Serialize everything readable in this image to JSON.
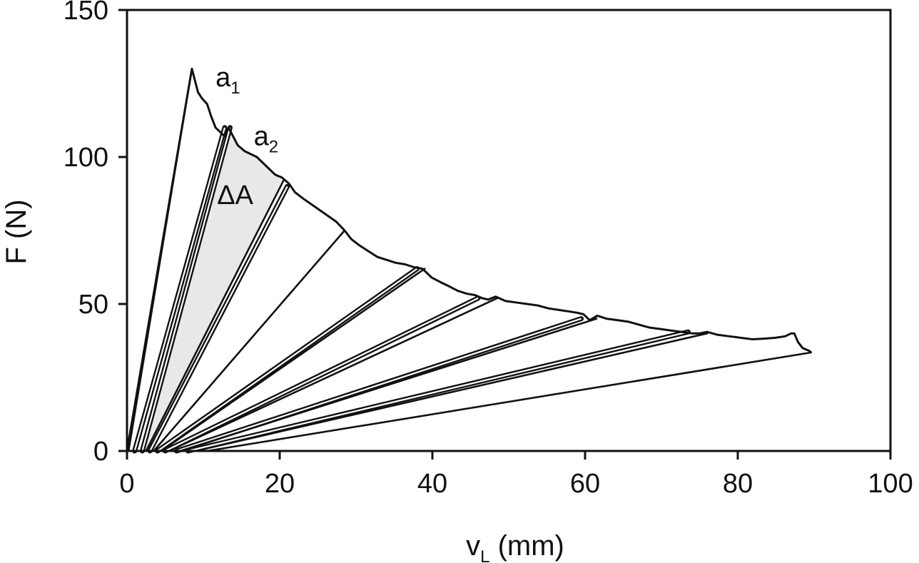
{
  "chart_data": {
    "type": "line",
    "xlabel": "v",
    "xlabel_sub": "L",
    "xlabel_unit": " (mm)",
    "ylabel": "F (N)",
    "xlim": [
      0,
      100
    ],
    "ylim": [
      0,
      150
    ],
    "xticks": [
      0,
      20,
      40,
      60,
      80,
      100
    ],
    "yticks": [
      0,
      50,
      100,
      150
    ],
    "grid": false,
    "envelope": {
      "x": [
        0,
        8.5,
        9.0,
        9.3,
        9.8,
        10.5,
        11.0,
        11.6,
        12.0,
        12.4,
        12.8,
        13.3,
        13.7,
        14.5,
        15.4,
        16.2,
        17.0,
        17.8,
        18.6,
        19.4,
        20.3,
        21.2,
        22.0,
        23.0,
        24.1,
        25.2,
        26.3,
        27.4,
        28.5,
        29.4,
        30.4,
        31.6,
        32.8,
        34.0,
        35.2,
        36.4,
        37.6,
        38.7,
        39.9,
        41.0,
        42.2,
        43.3,
        44.5,
        45.6,
        46.5,
        47.3,
        48.3,
        49.6,
        51.0,
        52.4,
        53.8,
        55.2,
        56.5,
        57.8,
        59.0,
        59.8,
        60.6,
        61.6,
        62.8,
        64.2,
        65.6,
        67.0,
        68.4,
        69.8,
        71.2,
        72.6,
        74.0,
        75.0,
        76.0,
        77.4,
        78.9,
        80.4,
        81.9,
        83.4,
        84.9,
        86.2,
        87.0,
        87.4,
        87.9,
        88.5,
        89.4,
        89.6
      ],
      "y": [
        0,
        130,
        125,
        122,
        120,
        118,
        114,
        110,
        109,
        108,
        107,
        110,
        108,
        104,
        102,
        101,
        100,
        98,
        96,
        94,
        93,
        91,
        88,
        86,
        84,
        82,
        80,
        78,
        75,
        72,
        70,
        68,
        66,
        65,
        64,
        63.5,
        62.5,
        62,
        59,
        57.5,
        56,
        54.5,
        53.5,
        53,
        52,
        51.5,
        52.5,
        51,
        50.5,
        50,
        49.5,
        48.5,
        48,
        47.5,
        47,
        46.5,
        44.5,
        46,
        45,
        44.5,
        44,
        43,
        42,
        41.5,
        41,
        40.5,
        40,
        40,
        40.5,
        39.5,
        39,
        38.5,
        38,
        38.2,
        38.5,
        39,
        40,
        40,
        37,
        35,
        34,
        33.5
      ]
    },
    "unloading_lines": [
      {
        "x0": 0.2,
        "xp": 8.5,
        "yp": 130,
        "double": false
      },
      {
        "x0": 1.0,
        "xp": 12.8,
        "yp": 110,
        "double": true
      },
      {
        "x0": 2.0,
        "xp": 13.5,
        "yp": 110,
        "double": true
      },
      {
        "x0": 2.5,
        "xp": 20.5,
        "yp": 92,
        "double": false
      },
      {
        "x0": 3.0,
        "xp": 21.0,
        "yp": 90,
        "double": true
      },
      {
        "x0": 3.5,
        "xp": 28.5,
        "yp": 75,
        "double": false
      },
      {
        "x0": 4.0,
        "xp": 38.0,
        "yp": 62,
        "double": true
      },
      {
        "x0": 4.5,
        "xp": 39.0,
        "yp": 62,
        "double": false
      },
      {
        "x0": 5.0,
        "xp": 46.0,
        "yp": 52,
        "double": true
      },
      {
        "x0": 5.5,
        "xp": 48.5,
        "yp": 52,
        "double": false
      },
      {
        "x0": 6.5,
        "xp": 59.5,
        "yp": 45,
        "double": true
      },
      {
        "x0": 7.0,
        "xp": 61.5,
        "yp": 45,
        "double": false
      },
      {
        "x0": 8.0,
        "xp": 73.5,
        "yp": 40.5,
        "double": true
      },
      {
        "x0": 9.0,
        "xp": 76.0,
        "yp": 40,
        "double": false
      },
      {
        "x0": 10.5,
        "xp": 89.6,
        "yp": 33.5,
        "double": false
      }
    ],
    "shaded_region": {
      "label": "ΔA",
      "color": "#e8e8e8",
      "x": [
        2.0,
        13.5,
        14.5,
        15.4,
        16.2,
        17.0,
        17.8,
        18.6,
        19.4,
        20.3,
        2.5
      ],
      "y": [
        0,
        110,
        104,
        102,
        101,
        100,
        98,
        96,
        94,
        92,
        0
      ]
    },
    "annotations": [
      {
        "text": "a",
        "sub": "1",
        "x": 11.6,
        "y": 124
      },
      {
        "text": "a",
        "sub": "2",
        "x": 16.6,
        "y": 104
      },
      {
        "text": "ΔA",
        "x": 11.8,
        "y": 84
      }
    ]
  }
}
